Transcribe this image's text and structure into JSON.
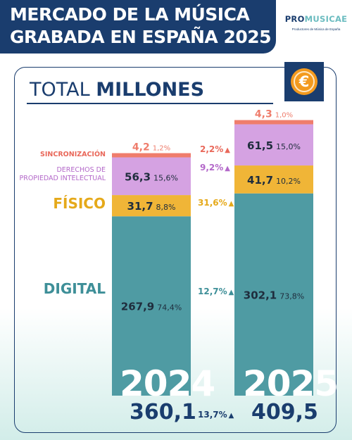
{
  "header": {
    "title_line1": "MERCADO DE LA MÚSICA",
    "title_line2": "GRABADA EN ESPAÑA 2025"
  },
  "logo": {
    "main_a": "PRO",
    "main_b": "MUSICAE",
    "subtitle": "Productores de Música de España"
  },
  "icons": {
    "currency": "euro-coin-icon"
  },
  "section": {
    "title_light": "TOTAL",
    "title_bold": "MILLONES"
  },
  "labels": {
    "sincronizacion": "SINCRONIZACIÓN",
    "derechos_line1": "DERECHOS DE",
    "derechos_line2": "PROPIEDAD INTELECTUAL",
    "fisico": "FÍSICO",
    "digital": "DIGITAL"
  },
  "growth": {
    "sincronizacion": "2,2%",
    "derechos": "9,2%",
    "fisico": "31,6%",
    "digital": "12,7%",
    "total": "13,7%"
  },
  "totals": {
    "y2024": "360,1",
    "y2025": "409,5"
  },
  "years": {
    "y2024": "2024",
    "y2025": "2025"
  },
  "colors": {
    "navy": "#1a3d6e",
    "digital": "#4f9ba3",
    "fisico": "#f0b537",
    "derechos": "#d5a2e2",
    "sincronizacion": "#ef7d6c"
  },
  "chart_data": {
    "type": "bar",
    "stacked": true,
    "categories": [
      "2024",
      "2025"
    ],
    "series": [
      {
        "name": "DIGITAL",
        "values": [
          267.9,
          302.1
        ],
        "labels": [
          "267,9",
          "302,1"
        ],
        "percent": [
          "74,4%",
          "73,8%"
        ]
      },
      {
        "name": "FÍSICO",
        "values": [
          31.7,
          41.7
        ],
        "labels": [
          "31,7",
          "41,7"
        ],
        "percent": [
          "8,8%",
          "10,2%"
        ]
      },
      {
        "name": "DERECHOS DE PROPIEDAD INTELECTUAL",
        "values": [
          56.3,
          61.5
        ],
        "labels": [
          "56,3",
          "61,5"
        ],
        "percent": [
          "15,6%",
          "15,0%"
        ]
      },
      {
        "name": "SINCRONIZACIÓN",
        "values": [
          4.2,
          4.3
        ],
        "labels": [
          "4,2",
          "4,3"
        ],
        "percent": [
          "1,2%",
          "1,0%"
        ]
      }
    ],
    "totals": [
      360.1,
      409.5
    ],
    "title": "TOTAL MILLONES",
    "legend": "left"
  }
}
